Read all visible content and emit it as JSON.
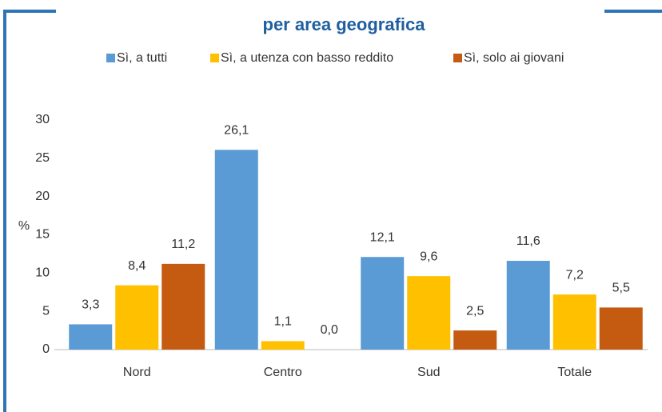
{
  "chart_data": {
    "type": "bar",
    "title": "per area geografica",
    "ylabel": "%",
    "categories": [
      "Nord",
      "Centro",
      "Sud",
      "Totale"
    ],
    "series": [
      {
        "name": "Sì, a tutti",
        "color": "#5b9bd5",
        "values": [
          3.3,
          26.1,
          12.1,
          11.6
        ],
        "value_labels": [
          "3,3",
          "26,1",
          "12,1",
          "11,6"
        ]
      },
      {
        "name": "Sì, a utenza con basso reddito",
        "color": "#ffc000",
        "values": [
          8.4,
          1.1,
          9.6,
          7.2
        ],
        "value_labels": [
          "8,4",
          "1,1",
          "9,6",
          "7,2"
        ]
      },
      {
        "name": "Sì, solo ai giovani",
        "color": "#c55a11",
        "values": [
          11.2,
          0.0,
          2.5,
          5.5
        ],
        "value_labels": [
          "11,2",
          "0,0",
          "2,5",
          "5,5"
        ]
      }
    ],
    "ylim": [
      0,
      30
    ],
    "yticks": [
      0,
      5,
      10,
      15,
      20,
      25,
      30
    ],
    "grid": false,
    "legend": "top"
  }
}
